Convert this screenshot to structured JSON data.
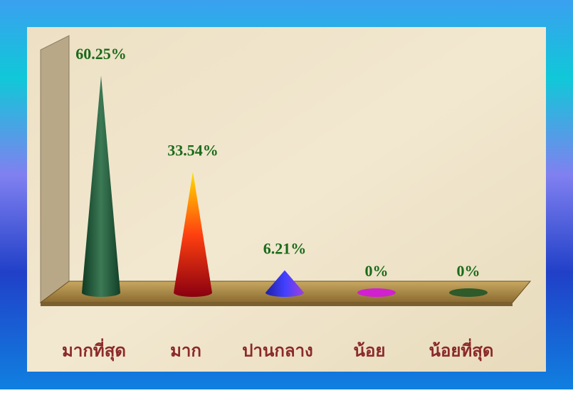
{
  "chart_data": {
    "type": "cone",
    "categories": [
      "มากที่สุด",
      "มาก",
      "ปานกลาง",
      "น้อย",
      "น้อยที่สุด"
    ],
    "values": [
      60.25,
      33.54,
      6.21,
      0,
      0
    ],
    "value_labels": [
      "60.25%",
      "33.54%",
      "6.21%",
      "0%",
      "0%"
    ],
    "colors": [
      "#1f5a3a",
      "#e02010",
      "#3030d0",
      "#d020d0",
      "#2f5a2a"
    ]
  }
}
